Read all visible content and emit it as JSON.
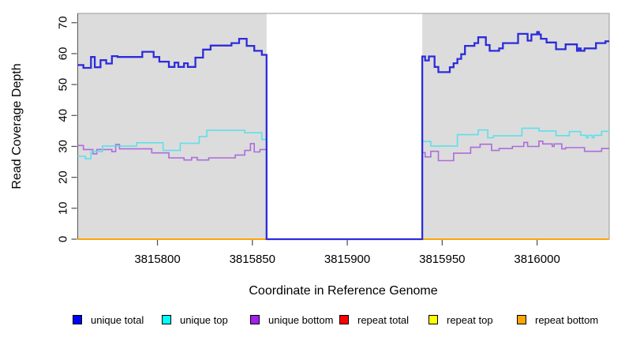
{
  "chart_data": {
    "type": "line",
    "subtype": "step",
    "title": "",
    "xlabel": "Coordinate in Reference Genome",
    "ylabel": "Read Coverage Depth",
    "xlim": [
      3815758,
      3816038
    ],
    "ylim": [
      0,
      73
    ],
    "x_ticks": [
      3815800,
      3815850,
      3815900,
      3815950,
      3816000
    ],
    "y_ticks": [
      0,
      10,
      20,
      30,
      40,
      50,
      60,
      70
    ],
    "grid": false,
    "legend_position": "bottom",
    "shaded_regions": [
      {
        "from": 3815758,
        "to": 3815857.5,
        "color": "#dcdcdc"
      },
      {
        "from": 3815939.5,
        "to": 3816038,
        "color": "#dcdcdc"
      }
    ],
    "gap_region": {
      "from": 3815857.5,
      "to": 3815939.5
    },
    "draw_order": [
      4,
      3,
      5,
      2,
      1,
      0
    ],
    "series": [
      {
        "name": "unique total",
        "color": "#0000ff",
        "line_color": "#2c2cdb",
        "line_width": 2.3,
        "steps": [
          [
            3815758,
            56.3
          ],
          [
            3815761,
            55.4
          ],
          [
            3815765,
            58.9
          ],
          [
            3815767,
            55.6
          ],
          [
            3815770,
            57.9
          ],
          [
            3815773,
            56.8
          ],
          [
            3815776,
            59.2
          ],
          [
            3815779,
            58.9
          ],
          [
            3815792,
            60.6
          ],
          [
            3815798,
            58.9
          ],
          [
            3815801,
            57.4
          ],
          [
            3815806,
            55.7
          ],
          [
            3815809,
            57.1
          ],
          [
            3815811,
            55.7
          ],
          [
            3815814,
            56.9
          ],
          [
            3815816,
            55.7
          ],
          [
            3815820,
            58.7
          ],
          [
            3815824,
            61.3
          ],
          [
            3815828,
            62.6
          ],
          [
            3815839,
            63.4
          ],
          [
            3815843,
            64.8
          ],
          [
            3815847,
            62.5
          ],
          [
            3815851,
            60.9
          ],
          [
            3815855,
            59.6
          ],
          [
            3815857.5,
            0
          ],
          [
            3815939.5,
            59.1
          ],
          [
            3815941,
            57.8
          ],
          [
            3815943,
            59.1
          ],
          [
            3815946,
            55.7
          ],
          [
            3815948,
            54.0
          ],
          [
            3815954,
            55.6
          ],
          [
            3815956,
            56.9
          ],
          [
            3815958,
            58.3
          ],
          [
            3815960,
            59.8
          ],
          [
            3815962,
            62.5
          ],
          [
            3815967,
            63.4
          ],
          [
            3815969,
            65.3
          ],
          [
            3815973,
            62.8
          ],
          [
            3815975,
            60.9
          ],
          [
            3815980,
            61.7
          ],
          [
            3815982,
            63.4
          ],
          [
            3815990,
            66.4
          ],
          [
            3815995,
            64.2
          ],
          [
            3815997,
            66.2
          ],
          [
            3816000,
            67.0
          ],
          [
            3816001,
            66.2
          ],
          [
            3816002,
            64.8
          ],
          [
            3816005,
            63.6
          ],
          [
            3816010,
            61.4
          ],
          [
            3816015,
            63.0
          ],
          [
            3816021,
            60.9
          ],
          [
            3816022,
            61.7
          ],
          [
            3816023,
            60.9
          ],
          [
            3816025,
            61.7
          ],
          [
            3816031,
            63.4
          ],
          [
            3816036,
            64.0
          ]
        ]
      },
      {
        "name": "unique top",
        "color": "#00ffff",
        "line_color": "#5edfe9",
        "line_width": 1.6,
        "steps": [
          [
            3815758,
            26.8
          ],
          [
            3815762,
            26.0
          ],
          [
            3815765,
            28.3
          ],
          [
            3815771,
            30.1
          ],
          [
            3815789,
            31.2
          ],
          [
            3815803,
            28.7
          ],
          [
            3815812,
            31.0
          ],
          [
            3815822,
            33.2
          ],
          [
            3815826,
            35.2
          ],
          [
            3815846,
            34.4
          ],
          [
            3815855,
            32.2
          ],
          [
            3815857.5,
            0
          ],
          [
            3815939.5,
            31.6
          ],
          [
            3815944,
            30.1
          ],
          [
            3815958,
            33.8
          ],
          [
            3815969,
            35.3
          ],
          [
            3815974,
            32.8
          ],
          [
            3815977,
            33.4
          ],
          [
            3815992,
            35.9
          ],
          [
            3816001,
            35.0
          ],
          [
            3816010,
            33.5
          ],
          [
            3816017,
            34.8
          ],
          [
            3816023,
            33.6
          ],
          [
            3816026,
            32.8
          ],
          [
            3816027,
            33.6
          ],
          [
            3816029,
            32.8
          ],
          [
            3816030,
            33.6
          ],
          [
            3816034,
            34.9
          ]
        ]
      },
      {
        "name": "unique bottom",
        "color": "#a020f0",
        "line_color": "#ab6cdc",
        "line_width": 1.6,
        "steps": [
          [
            3815758,
            30.3
          ],
          [
            3815761,
            29.0
          ],
          [
            3815766,
            27.6
          ],
          [
            3815768,
            29.0
          ],
          [
            3815776,
            28.3
          ],
          [
            3815778,
            30.6
          ],
          [
            3815780,
            29.2
          ],
          [
            3815797,
            27.9
          ],
          [
            3815806,
            26.3
          ],
          [
            3815814,
            25.6
          ],
          [
            3815818,
            26.4
          ],
          [
            3815821,
            25.6
          ],
          [
            3815827,
            26.3
          ],
          [
            3815841,
            27.2
          ],
          [
            3815846,
            28.7
          ],
          [
            3815849,
            30.9
          ],
          [
            3815851,
            28.2
          ],
          [
            3815854,
            29.0
          ],
          [
            3815857.5,
            0
          ],
          [
            3815939.5,
            28.0
          ],
          [
            3815941,
            26.6
          ],
          [
            3815944,
            28.4
          ],
          [
            3815948,
            25.4
          ],
          [
            3815956,
            27.8
          ],
          [
            3815965,
            29.7
          ],
          [
            3815970,
            30.7
          ],
          [
            3815976,
            28.7
          ],
          [
            3815980,
            29.3
          ],
          [
            3815987,
            30.0
          ],
          [
            3815993,
            31.3
          ],
          [
            3815995,
            30.0
          ],
          [
            3816001,
            31.7
          ],
          [
            3816003,
            30.8
          ],
          [
            3816008,
            30.0
          ],
          [
            3816009,
            30.8
          ],
          [
            3816013,
            29.2
          ],
          [
            3816015,
            29.6
          ],
          [
            3816025,
            28.4
          ],
          [
            3816034,
            29.3
          ]
        ]
      },
      {
        "name": "repeat total",
        "color": "#ff0000",
        "line_color": "#e00000",
        "line_width": 1.8,
        "steps": [
          [
            3815758,
            0
          ]
        ]
      },
      {
        "name": "repeat top",
        "color": "#ffff00",
        "line_color": "#f2f200",
        "line_width": 1.8,
        "steps": [
          [
            3815758,
            0
          ]
        ]
      },
      {
        "name": "repeat bottom",
        "color": "#ffa500",
        "line_color": "#ffa500",
        "line_width": 2.0,
        "steps": [
          [
            3815758,
            0
          ]
        ]
      }
    ]
  },
  "axis": {
    "tick_color": "#4d4d4d",
    "box_color": "#999999",
    "left_axis_color": "#555555",
    "label_color": "#000000",
    "panel_background": "#ffffff"
  }
}
